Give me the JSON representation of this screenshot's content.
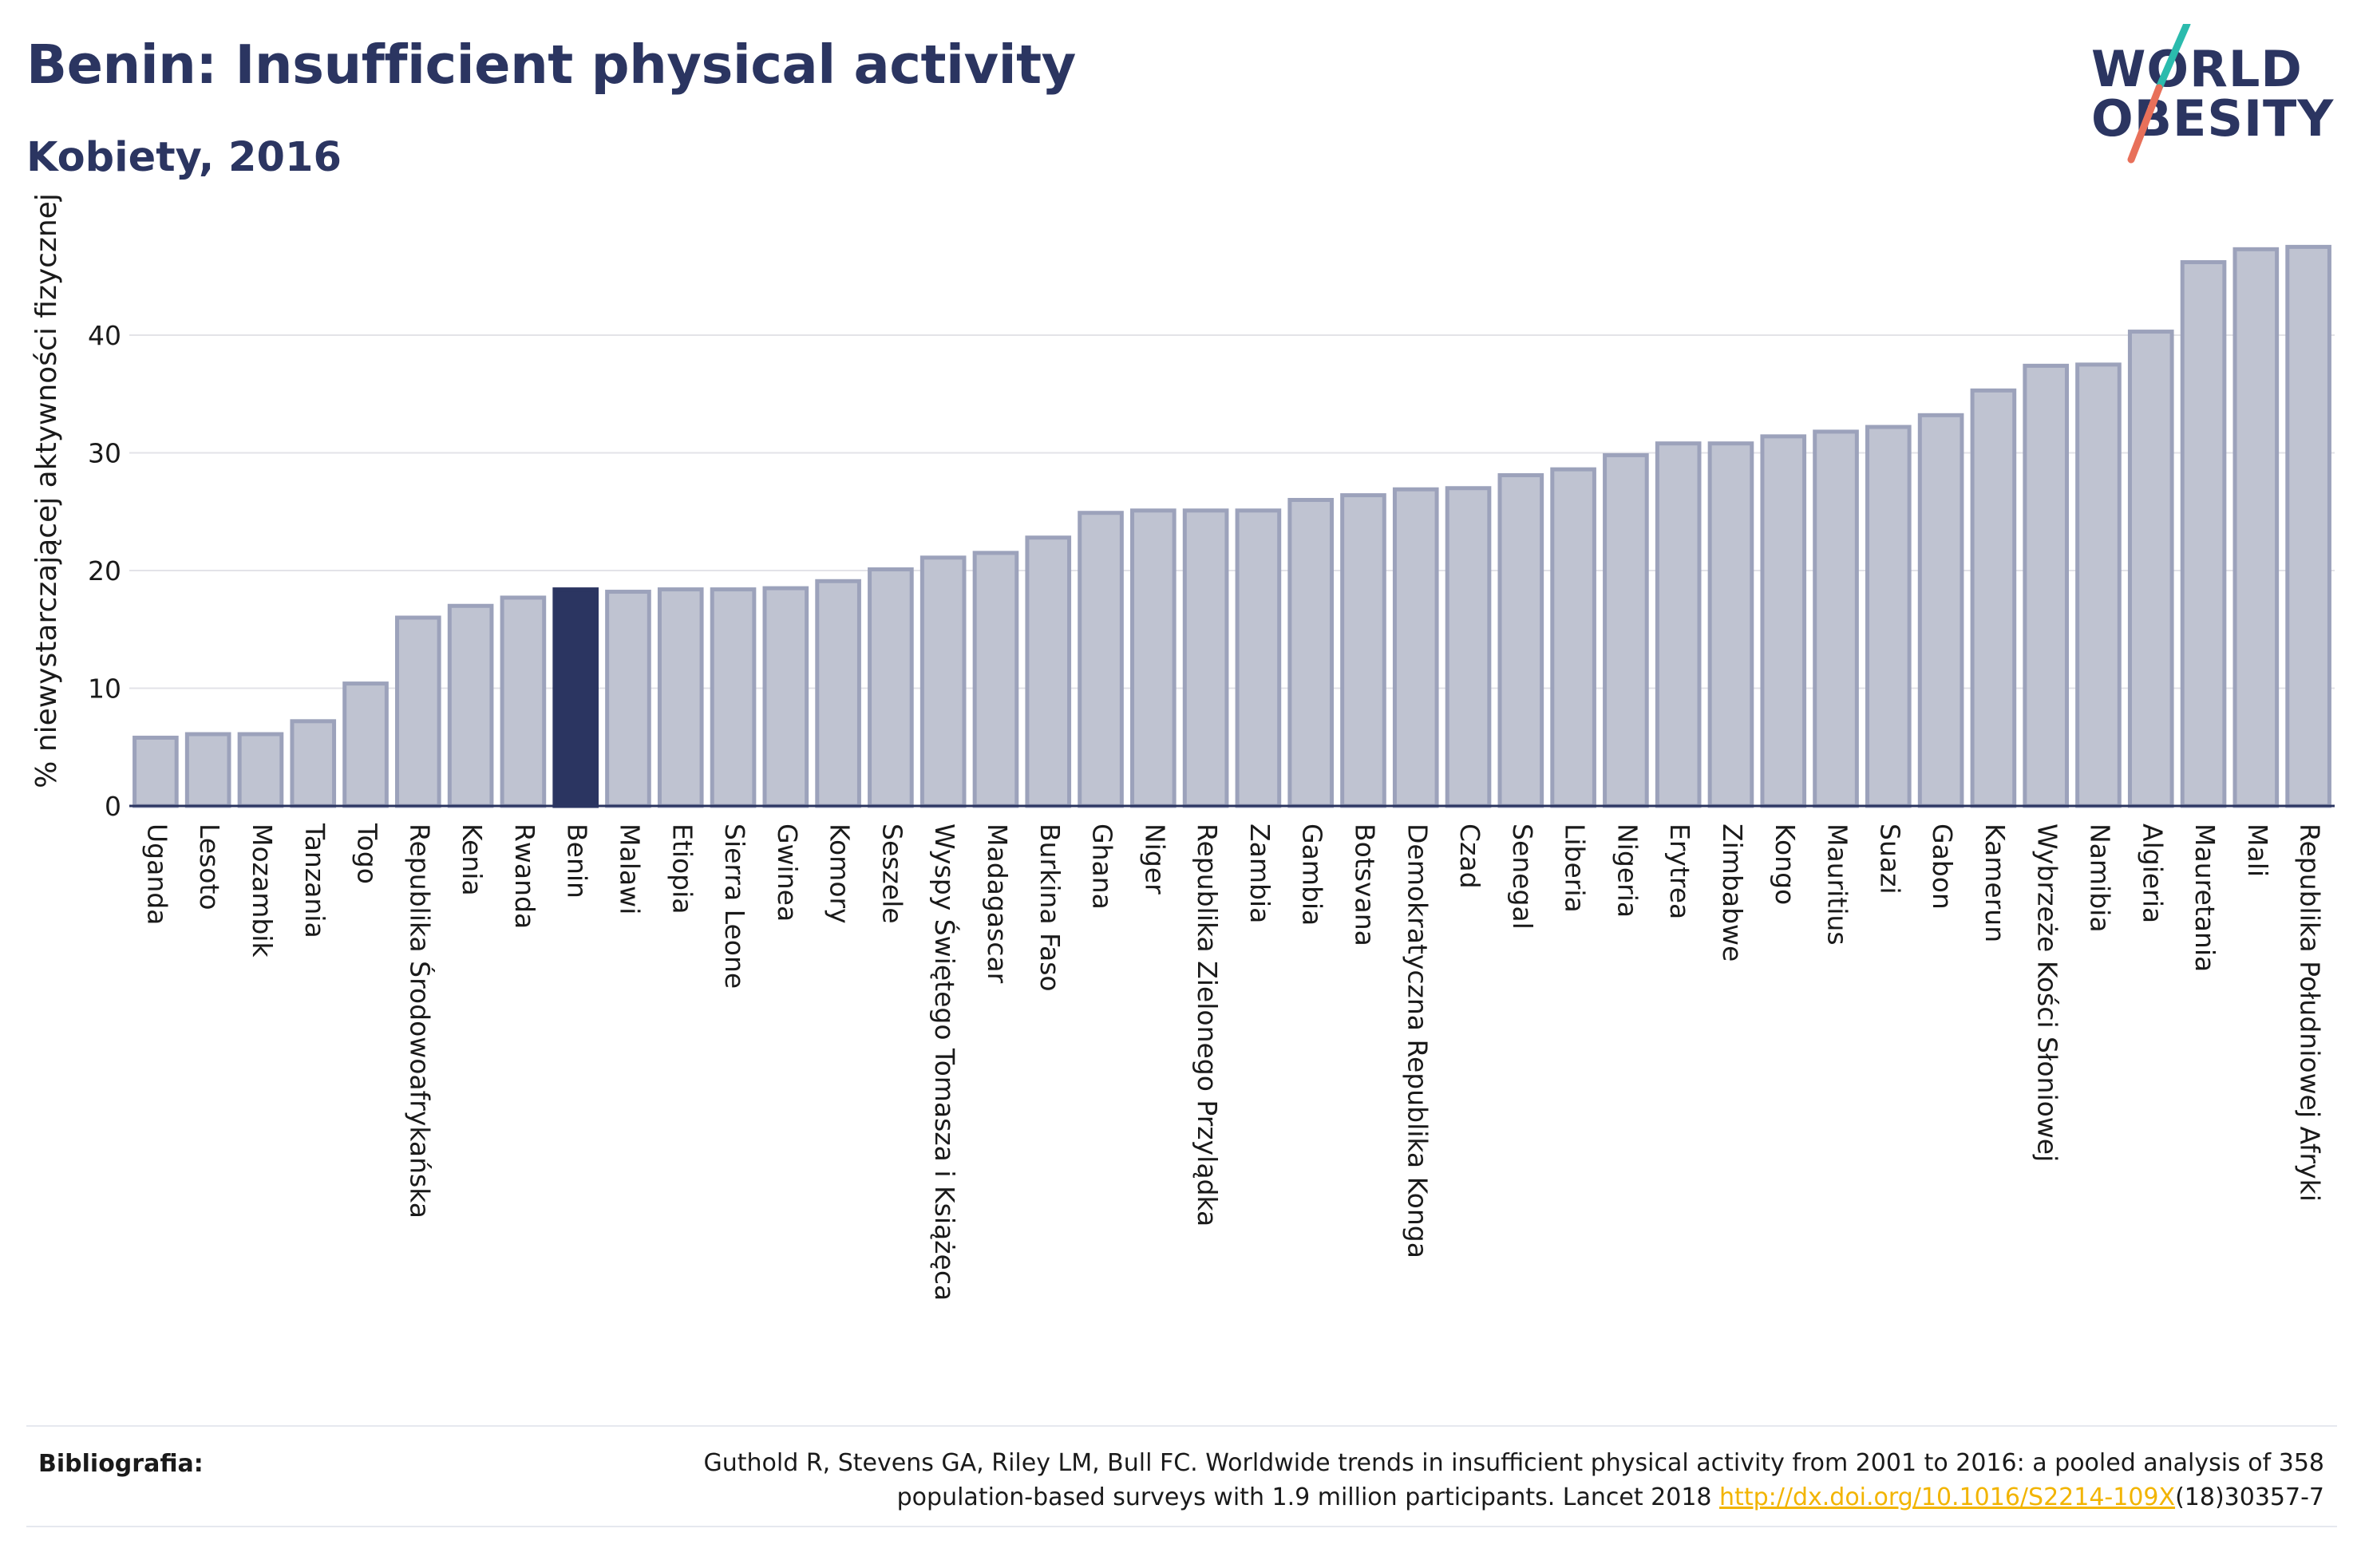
{
  "header": {
    "title": "Benin: Insufficient physical activity",
    "subtitle": "Kobiety, 2016"
  },
  "logo": {
    "line1": "WORLD",
    "line2": "OBESITY",
    "accent_teal": "#2bbbad",
    "accent_red": "#e8705a"
  },
  "colors": {
    "bar": "#bfc3d1",
    "bar_stroke": "#9ca2bb",
    "highlight": "#2b3561",
    "text": "#2b3561"
  },
  "chart_data": {
    "type": "bar",
    "ylabel": "% niewystarczającej aktywności fizycznej",
    "xlabel": "",
    "ylim": [
      0,
      50
    ],
    "yticks": [
      0,
      10,
      20,
      30,
      40
    ],
    "grid": true,
    "highlight": "Benin",
    "categories": [
      "Uganda",
      "Lesoto",
      "Mozambik",
      "Tanzania",
      "Togo",
      "Republika Środowoafrykańska",
      "Kenia",
      "Rwanda",
      "Benin",
      "Malawi",
      "Etiopia",
      "Sierra Leone",
      "Gwinea",
      "Komory",
      "Seszele",
      "Wyspy Świętego Tomasza i Książęca",
      "Madagascar",
      "Burkina Faso",
      "Ghana",
      "Niger",
      "Republika Zielonego Przylądka",
      "Zambia",
      "Gambia",
      "Botsvana",
      "Demokratyczna Republika Konga",
      "Czad",
      "Senegal",
      "Liberia",
      "Nigeria",
      "Erytrea",
      "Zimbabwe",
      "Kongo",
      "Mauritius",
      "Suazi",
      "Gabon",
      "Kamerun",
      "Wybrzeże Kości Słoniowej",
      "Namibia",
      "Algieria",
      "Mauretania",
      "Mali",
      "Republika Południowej Afryki"
    ],
    "values": [
      5.8,
      6.1,
      6.1,
      7.2,
      10.4,
      16.0,
      17.0,
      17.7,
      18.4,
      18.2,
      18.4,
      18.4,
      18.5,
      19.1,
      20.1,
      21.1,
      21.5,
      22.8,
      24.9,
      25.1,
      25.1,
      25.1,
      26.0,
      26.4,
      26.9,
      27.0,
      28.1,
      28.6,
      29.8,
      30.8,
      30.8,
      31.4,
      31.8,
      32.2,
      33.2,
      35.3,
      37.4,
      37.5,
      40.3,
      46.2,
      47.3,
      47.5
    ]
  },
  "footer": {
    "label": "Bibliografia:",
    "text_line1": "Guthold R, Stevens GA, Riley LM, Bull FC. Worldwide trends in insufficient physical activity from 2001 to 2016: a pooled analysis of 358",
    "text_line2_pre": "population-based surveys with 1.9 million participants. Lancet 2018 ",
    "link": "http://dx.doi.org/10.1016/S2214-109X",
    "text_line2_post": "(18)30357-7"
  }
}
